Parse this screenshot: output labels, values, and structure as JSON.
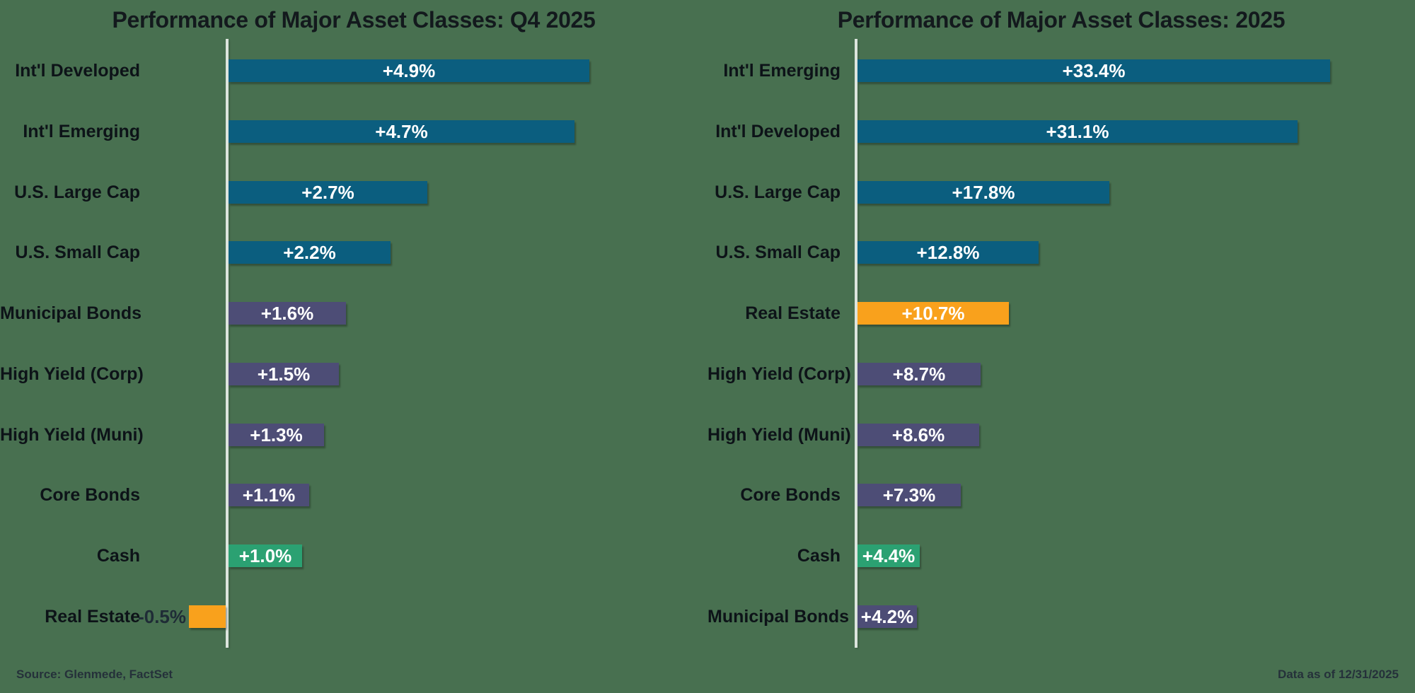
{
  "page": {
    "background_color": "#487050"
  },
  "colors": {
    "equity_teal": "#0B5E7F",
    "bond_purple": "#4D4D76",
    "cash_green": "#2BA172",
    "real_estate_orange": "#F9A11C",
    "axis_line": "#DCE4DD",
    "title_text": "#13191D",
    "label_text": "#0D1318",
    "value_text_light": "#FFFFFF",
    "value_text_dark": "#1F2C36"
  },
  "footer": {
    "source": "Source: Glenmede, FactSet",
    "data_as_of": "Data as of 12/31/2025"
  },
  "chart_data": [
    {
      "type": "bar",
      "orientation": "horizontal",
      "title": "Performance of Major Asset Classes: Q4 2025",
      "unit": "%",
      "xlim": [
        -0.7,
        6.5
      ],
      "grid": false,
      "zero_axis_line": true,
      "categories": [
        "Int'l Developed",
        "Int'l Emerging",
        "U.S. Large Cap",
        "U.S. Small Cap",
        "Municipal Bonds",
        "High Yield (Corp)",
        "High Yield (Muni)",
        "Core Bonds",
        "Cash",
        "Real Estate"
      ],
      "values": [
        4.9,
        4.7,
        2.7,
        2.2,
        1.6,
        1.5,
        1.3,
        1.1,
        1.0,
        -0.5
      ],
      "bars": [
        {
          "label": "Int'l Developed",
          "value": 4.9,
          "display": "+4.9%",
          "color": "equity_teal"
        },
        {
          "label": "Int'l Emerging",
          "value": 4.7,
          "display": "+4.7%",
          "color": "equity_teal"
        },
        {
          "label": "U.S. Large Cap",
          "value": 2.7,
          "display": "+2.7%",
          "color": "equity_teal"
        },
        {
          "label": "U.S. Small Cap",
          "value": 2.2,
          "display": "+2.2%",
          "color": "equity_teal"
        },
        {
          "label": "Municipal Bonds",
          "value": 1.6,
          "display": "+1.6%",
          "color": "bond_purple"
        },
        {
          "label": "High Yield (Corp)",
          "value": 1.5,
          "display": "+1.5%",
          "color": "bond_purple"
        },
        {
          "label": "High Yield (Muni)",
          "value": 1.3,
          "display": "+1.3%",
          "color": "bond_purple"
        },
        {
          "label": "Core Bonds",
          "value": 1.1,
          "display": "+1.1%",
          "color": "bond_purple"
        },
        {
          "label": "Cash",
          "value": 1.0,
          "display": "+1.0%",
          "color": "cash_green"
        },
        {
          "label": "Real Estate",
          "value": -0.5,
          "display": "-0.5%",
          "color": "real_estate_orange"
        }
      ]
    },
    {
      "type": "bar",
      "orientation": "horizontal",
      "title": "Performance of Major Asset Classes: 2025",
      "unit": "%",
      "xlim": [
        0,
        39
      ],
      "grid": false,
      "zero_axis_line": true,
      "categories": [
        "Int'l Emerging",
        "Int'l Developed",
        "U.S. Large Cap",
        "U.S. Small Cap",
        "Real Estate",
        "High Yield (Corp)",
        "High Yield (Muni)",
        "Core Bonds",
        "Cash",
        "Municipal Bonds"
      ],
      "values": [
        33.4,
        31.1,
        17.8,
        12.8,
        10.7,
        8.7,
        8.6,
        7.3,
        4.4,
        4.2
      ],
      "bars": [
        {
          "label": "Int'l Emerging",
          "value": 33.4,
          "display": "+33.4%",
          "color": "equity_teal"
        },
        {
          "label": "Int'l Developed",
          "value": 31.1,
          "display": "+31.1%",
          "color": "equity_teal"
        },
        {
          "label": "U.S. Large Cap",
          "value": 17.8,
          "display": "+17.8%",
          "color": "equity_teal"
        },
        {
          "label": "U.S. Small Cap",
          "value": 12.8,
          "display": "+12.8%",
          "color": "equity_teal"
        },
        {
          "label": "Real Estate",
          "value": 10.7,
          "display": "+10.7%",
          "color": "real_estate_orange"
        },
        {
          "label": "High Yield (Corp)",
          "value": 8.7,
          "display": "+8.7%",
          "color": "bond_purple"
        },
        {
          "label": "High Yield (Muni)",
          "value": 8.6,
          "display": "+8.6%",
          "color": "bond_purple"
        },
        {
          "label": "Core Bonds",
          "value": 7.3,
          "display": "+7.3%",
          "color": "bond_purple"
        },
        {
          "label": "Cash",
          "value": 4.4,
          "display": "+4.4%",
          "color": "cash_green"
        },
        {
          "label": "Municipal Bonds",
          "value": 4.2,
          "display": "+4.2%",
          "color": "bond_purple"
        }
      ]
    }
  ]
}
